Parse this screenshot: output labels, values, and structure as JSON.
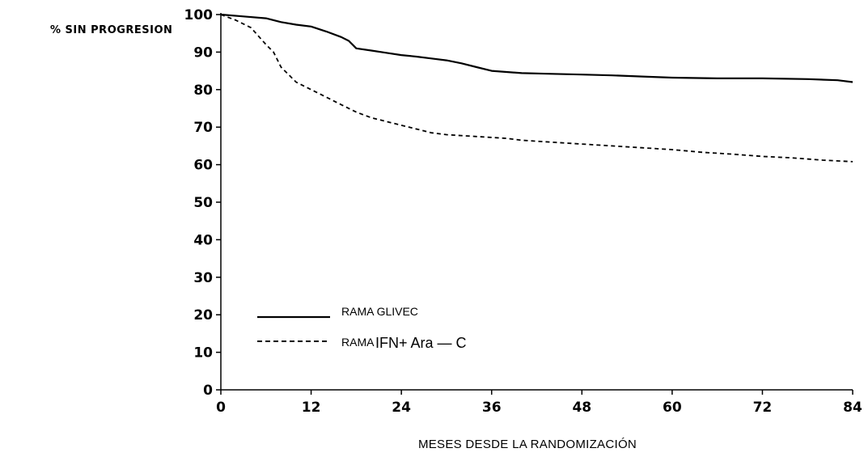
{
  "chart_data": {
    "type": "line",
    "ylabel": "% SIN PROGRESION",
    "xlabel": "MESES DESDE LA RANDOMIZACIÓN",
    "xlim": [
      0,
      84
    ],
    "ylim": [
      0,
      100
    ],
    "xticks": [
      0,
      12,
      24,
      36,
      48,
      60,
      72,
      84
    ],
    "yticks": [
      0,
      10,
      20,
      30,
      40,
      50,
      60,
      70,
      80,
      90,
      100
    ],
    "grid": false,
    "legend_position": "bottom-left",
    "legend": {
      "glivec_label": "RAMA GLIVEC",
      "ifn_prefix": "RAMA",
      "ifn_main": "IFN+ Ara — C"
    },
    "series": [
      {
        "name": "RAMA GLIVEC",
        "style": "solid",
        "color": "#000000",
        "x": [
          0,
          3,
          6,
          8,
          10,
          12,
          14,
          16,
          17,
          18,
          20,
          22,
          24,
          26,
          28,
          30,
          32,
          34,
          36,
          40,
          44,
          48,
          52,
          56,
          60,
          66,
          72,
          78,
          82,
          84
        ],
        "y": [
          100,
          99.5,
          99,
          98,
          97.3,
          96.8,
          95.5,
          94,
          93,
          91,
          90.4,
          89.8,
          89.2,
          88.8,
          88.3,
          87.8,
          87,
          86,
          85,
          84.4,
          84.2,
          84,
          83.8,
          83.5,
          83.2,
          83,
          83,
          82.8,
          82.5,
          82
        ]
      },
      {
        "name": "RAMA IFN+ Ara — C",
        "style": "dashed",
        "color": "#000000",
        "x": [
          0,
          2,
          4,
          6,
          7,
          8,
          9,
          10,
          11,
          12,
          14,
          16,
          18,
          20,
          22,
          24,
          26,
          28,
          30,
          34,
          38,
          40,
          44,
          48,
          52,
          56,
          60,
          64,
          68,
          72,
          76,
          80,
          84
        ],
        "y": [
          100,
          98.5,
          96.5,
          92,
          90,
          86,
          84,
          82,
          81,
          80,
          78,
          76,
          74,
          72.5,
          71.5,
          70.5,
          69.5,
          68.5,
          68,
          67.5,
          67,
          66.5,
          66,
          65.5,
          65,
          64.5,
          64,
          63.3,
          62.8,
          62.2,
          61.8,
          61.2,
          60.8
        ]
      }
    ]
  }
}
